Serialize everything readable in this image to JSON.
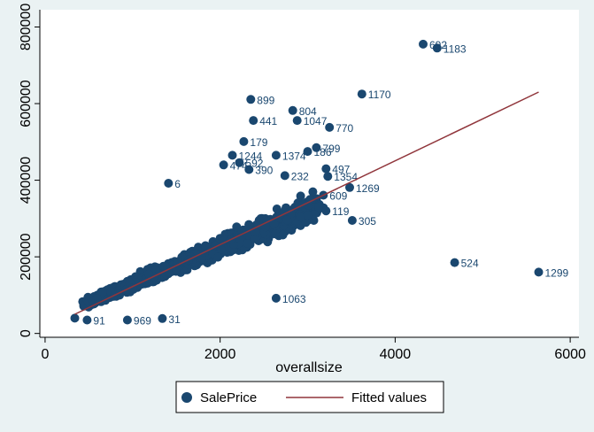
{
  "chart_data": {
    "type": "scatter",
    "xlabel": "overallsize",
    "ylabel": "",
    "xlim": [
      -60,
      6100
    ],
    "ylim": [
      -10000,
      845000
    ],
    "xticks": [
      0,
      2000,
      4000,
      6000
    ],
    "yticks": [
      0,
      200000,
      400000,
      600000,
      800000
    ],
    "xtick_labels": [
      "0",
      "2000",
      "4000",
      "6000"
    ],
    "ytick_labels": [
      "0",
      "200000",
      "400000",
      "600000",
      "800000"
    ],
    "grid": false,
    "legend": {
      "placement": "bottom",
      "entries": [
        "SalePrice",
        "Fitted values"
      ]
    },
    "colors": {
      "scatter": "#1a476f",
      "fit": "#90353b",
      "plot_bg": "#ffffff",
      "outer_bg": "#eaf2f3"
    },
    "series": [
      {
        "name": "SalePrice",
        "kind": "scatter",
        "points": [
          {
            "x": 4320,
            "y": 755000,
            "label": "692"
          },
          {
            "x": 4480,
            "y": 745000,
            "label": "1183"
          },
          {
            "x": 3620,
            "y": 625000,
            "label": "1170"
          },
          {
            "x": 2350,
            "y": 611000,
            "label": "899"
          },
          {
            "x": 2830,
            "y": 582000,
            "label": "804"
          },
          {
            "x": 2380,
            "y": 556000,
            "label": "441"
          },
          {
            "x": 2880,
            "y": 556000,
            "label": "1047"
          },
          {
            "x": 3250,
            "y": 538000,
            "label": "770"
          },
          {
            "x": 2270,
            "y": 501000,
            "label": "179"
          },
          {
            "x": 3100,
            "y": 485000,
            "label": "799"
          },
          {
            "x": 2140,
            "y": 465000,
            "label": "1244"
          },
          {
            "x": 2640,
            "y": 465000,
            "label": "1374"
          },
          {
            "x": 3000,
            "y": 475000,
            "label": "186"
          },
          {
            "x": 2220,
            "y": 446000,
            "label": "592"
          },
          {
            "x": 3210,
            "y": 430000,
            "label": "497"
          },
          {
            "x": 2040,
            "y": 440000,
            "label": "474"
          },
          {
            "x": 2330,
            "y": 428000,
            "label": "390"
          },
          {
            "x": 3230,
            "y": 410000,
            "label": "1354"
          },
          {
            "x": 2740,
            "y": 412000,
            "label": "232"
          },
          {
            "x": 3480,
            "y": 381000,
            "label": "1269"
          },
          {
            "x": 1410,
            "y": 392000,
            "label": "6"
          },
          {
            "x": 3180,
            "y": 361000,
            "label": "609"
          },
          {
            "x": 3210,
            "y": 320000,
            "label": "119"
          },
          {
            "x": 3510,
            "y": 295000,
            "label": "305"
          },
          {
            "x": 4680,
            "y": 185000,
            "label": "524"
          },
          {
            "x": 5640,
            "y": 160000,
            "label": "1299"
          },
          {
            "x": 2640,
            "y": 92000,
            "label": "1063"
          },
          {
            "x": 1340,
            "y": 39000,
            "label": "31"
          },
          {
            "x": 940,
            "y": 35000,
            "label": "969"
          },
          {
            "x": 480,
            "y": 35000,
            "label": "91"
          },
          {
            "x": 340,
            "y": 40000,
            "label": ""
          }
        ],
        "cloud": {
          "x_center_line": [
            [
              600,
              80000
            ],
            [
              900,
              120000
            ],
            [
              1200,
              150000
            ],
            [
              1500,
              185000
            ],
            [
              1800,
              215000
            ],
            [
              2100,
              245000
            ],
            [
              2400,
              275000
            ],
            [
              2700,
              300000
            ]
          ],
          "note": "dense mass of overlapping points"
        }
      },
      {
        "name": "Fitted values",
        "kind": "line",
        "points": [
          {
            "x": 340,
            "y": 50000
          },
          {
            "x": 5640,
            "y": 630000
          }
        ]
      }
    ]
  }
}
